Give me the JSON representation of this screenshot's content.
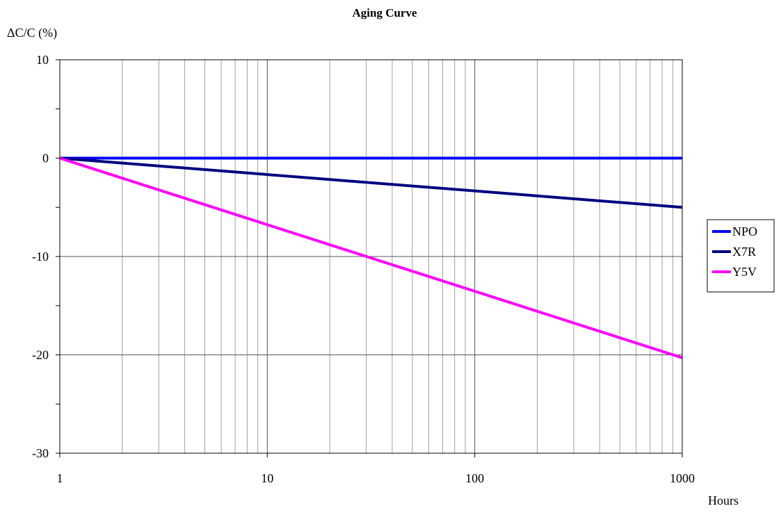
{
  "chart_data": {
    "type": "line",
    "title": "Aging Curve",
    "ylabel": "ΔC/C (%)",
    "xlabel": "Hours",
    "x_scale": "log",
    "xlim": [
      1,
      1000
    ],
    "ylim": [
      -30,
      10
    ],
    "x_ticks": [
      "1",
      "10",
      "100",
      "1000"
    ],
    "y_ticks": [
      "10",
      "0",
      "-10",
      "-20",
      "-30"
    ],
    "grid": "on",
    "legend_position": "right",
    "series": [
      {
        "name": "NPO",
        "color": "#0000ff",
        "x": [
          1,
          1000
        ],
        "values": [
          0,
          0
        ]
      },
      {
        "name": "X7R",
        "color": "#000080",
        "x": [
          1,
          1000
        ],
        "values": [
          0,
          -5
        ]
      },
      {
        "name": "Y5V",
        "color": "#ff00ff",
        "x": [
          1,
          1000
        ],
        "values": [
          0,
          -20.3
        ]
      }
    ]
  }
}
